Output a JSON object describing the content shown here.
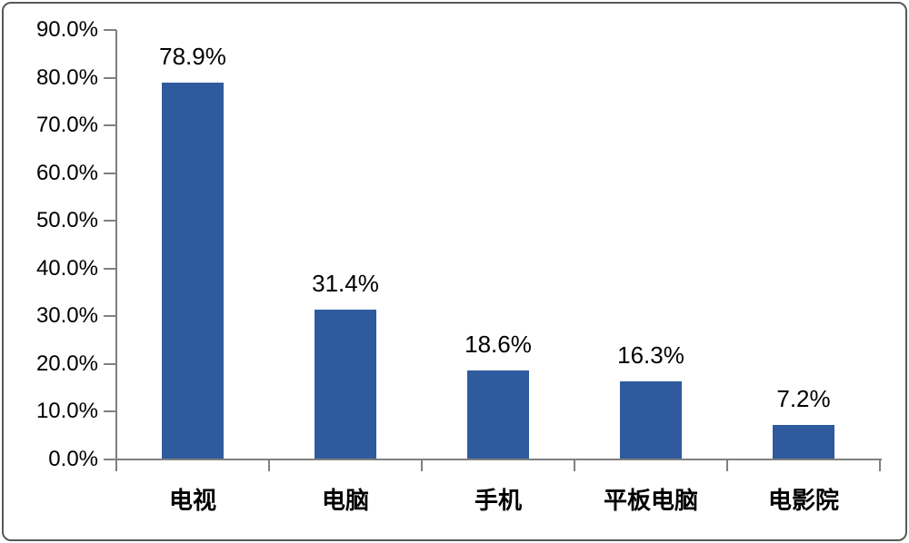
{
  "chart_data": {
    "type": "bar",
    "title": "",
    "categories": [
      "电视",
      "电脑",
      "手机",
      "平板电脑",
      "电影院"
    ],
    "values": [
      78.9,
      31.4,
      18.6,
      16.3,
      7.2
    ],
    "data_labels": [
      "78.9%",
      "31.4%",
      "18.6%",
      "16.3%",
      "7.2%"
    ],
    "y_axis": {
      "tick_labels": [
        "90.0%",
        "80.0%",
        "70.0%",
        "60.0%",
        "50.0%",
        "40.0%",
        "30.0%",
        "20.0%",
        "10.0%",
        "0.0%"
      ],
      "min": 0,
      "max": 90,
      "step": 10,
      "unit": "%"
    },
    "grid": false,
    "legend": "none",
    "colors": {
      "bar": "#2F5B9E",
      "axis": "#808080",
      "text": "#000000",
      "border": "#595959",
      "background": "#FFFFFF"
    }
  }
}
